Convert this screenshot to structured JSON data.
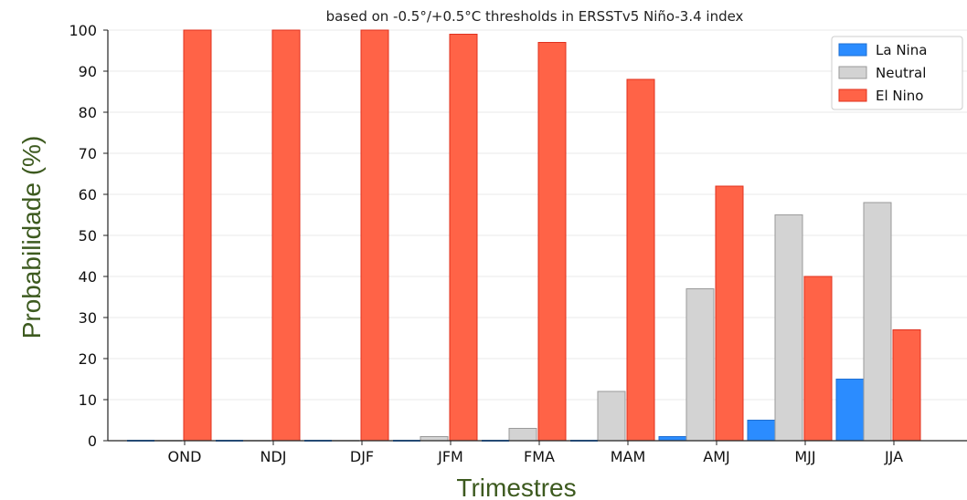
{
  "chart_data": {
    "type": "bar",
    "title": "based on -0.5°/+0.5°C thresholds in ERSSTv5 Niño-3.4 index",
    "xlabel": "Trimestres",
    "ylabel": "Probabilidade (%)",
    "ylim": [
      0,
      100
    ],
    "yticks": [
      "0",
      "10",
      "20",
      "30",
      "40",
      "50",
      "60",
      "70",
      "80",
      "90",
      "100"
    ],
    "grid": true,
    "legend_position": "top-right",
    "categories": [
      "OND",
      "NDJ",
      "DJF",
      "JFM",
      "FMA",
      "MAM",
      "AMJ",
      "MJJ",
      "JJA"
    ],
    "series": [
      {
        "name": "La Nina",
        "color": "#2b8cff",
        "values": [
          0,
          0,
          0,
          0,
          0,
          0,
          1,
          5,
          15
        ]
      },
      {
        "name": "Neutral",
        "color": "#d3d3d3",
        "values": [
          0,
          0,
          0,
          1,
          3,
          12,
          37,
          55,
          58
        ]
      },
      {
        "name": "El Nino",
        "color": "#ff6347",
        "values": [
          100,
          100,
          100,
          99,
          97,
          88,
          62,
          40,
          27
        ]
      }
    ]
  }
}
